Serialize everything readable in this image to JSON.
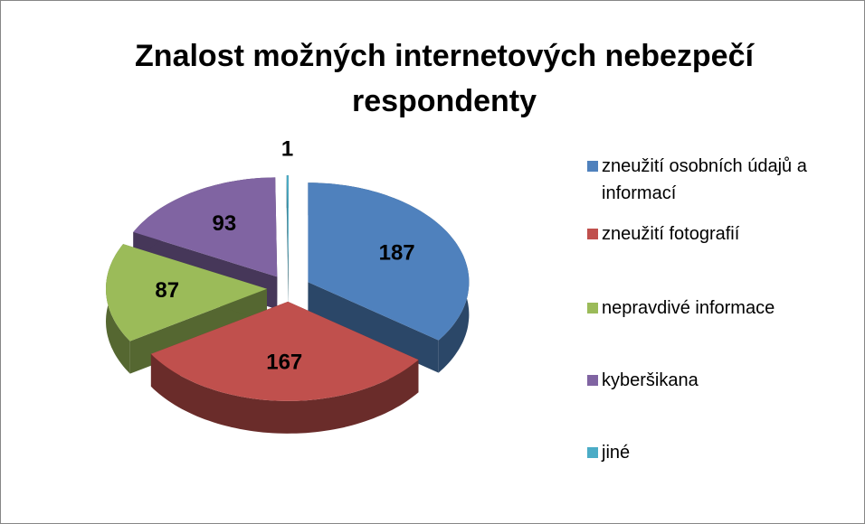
{
  "chart_data": {
    "type": "pie",
    "title": "Znalost možných internetových nebezpečí respondenty",
    "categories": [
      "zneužití osobních údajů a informací",
      "zneužití fotografií",
      "nepravdivé informace",
      "kyberšikana",
      "jiné"
    ],
    "values": [
      187,
      167,
      87,
      93,
      1
    ],
    "colors": [
      "#4f81bd",
      "#c0504d",
      "#9bbb59",
      "#8064a2",
      "#4bacc6"
    ],
    "legend": "right"
  }
}
